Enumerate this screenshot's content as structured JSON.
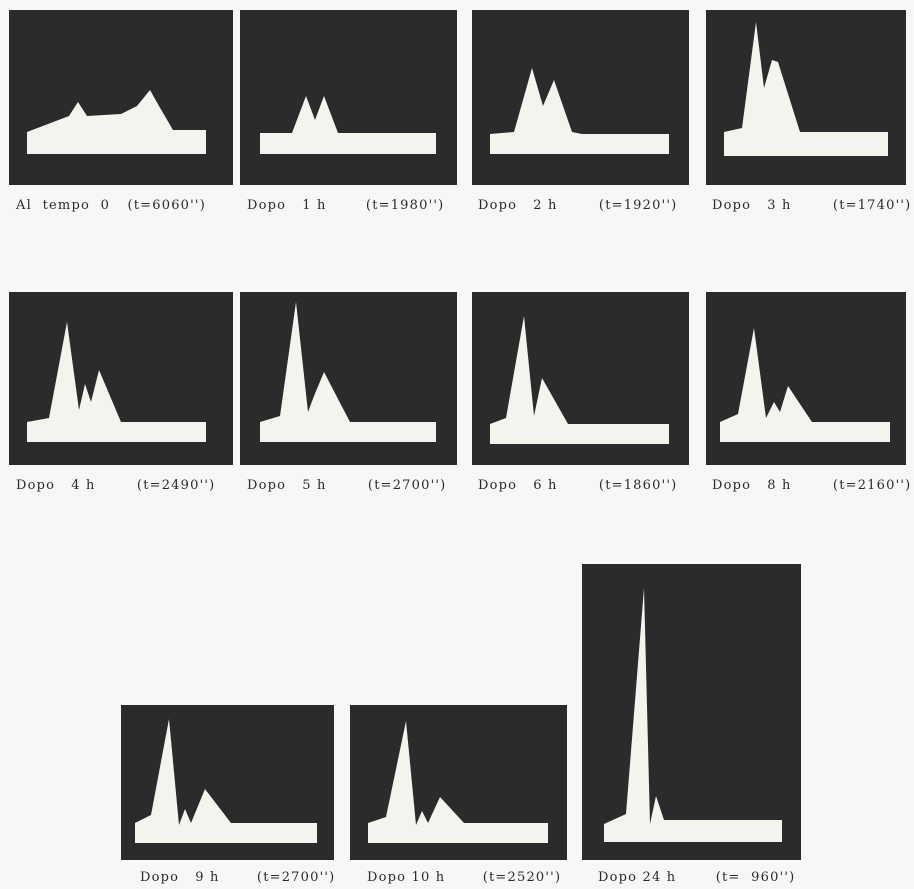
{
  "panels": [
    {
      "caption": "Al  tempo  0",
      "time": "(t=6060'')"
    },
    {
      "caption": "Dopo   1 h",
      "time": "(t=1980'')"
    },
    {
      "caption": "Dopo   2 h",
      "time": "(t=1920'')"
    },
    {
      "caption": "Dopo   3 h",
      "time": "(t=1740'')"
    },
    {
      "caption": "Dopo   4 h",
      "time": "(t=2490'')"
    },
    {
      "caption": "Dopo   5 h",
      "time": "(t=2700'')"
    },
    {
      "caption": "Dopo   6 h",
      "time": "(t=1860'')"
    },
    {
      "caption": "Dopo   8 h",
      "time": "(t=2160'')"
    },
    {
      "caption": "Dopo   9 h",
      "time": "(t=2700'')"
    },
    {
      "caption": "Dopo 10 h",
      "time": "(t=2520'')"
    },
    {
      "caption": "Dopo 24 h",
      "time": "(t=  960'')"
    }
  ]
}
